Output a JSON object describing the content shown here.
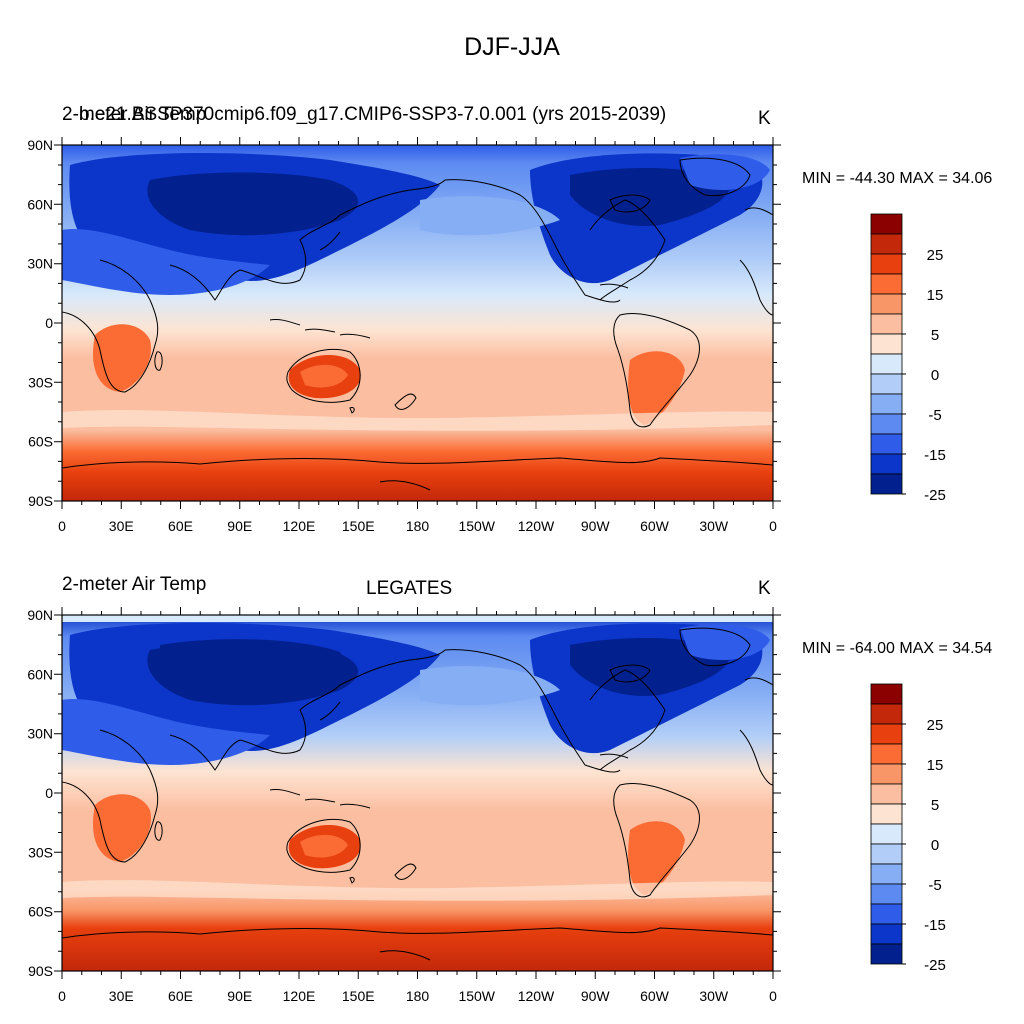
{
  "figure": {
    "title": "DJF-JJA"
  },
  "panels": [
    {
      "left_label": "2-meter Air Temp",
      "center_label": "b.e21.BSSP370cmip6.f09_g17.CMIP6-SSP3-7.0.001 (yrs 2015-2039)",
      "units": "K",
      "min_max": "MIN = -44.30 MAX =  34.06"
    },
    {
      "left_label": "2-meter Air Temp",
      "center_label": "LEGATES",
      "units": "K",
      "min_max": "MIN = -64.00 MAX =  34.54"
    }
  ],
  "map": {
    "projection": "cylindrical equidistant",
    "center_longitude": 180,
    "lat_ticks": [
      "90N",
      "60N",
      "30N",
      "0",
      "30S",
      "60S",
      "90S"
    ],
    "lon_ticks": [
      "0",
      "30E",
      "60E",
      "90E",
      "120E",
      "150E",
      "180",
      "150W",
      "120W",
      "90W",
      "60W",
      "30W",
      "0"
    ]
  },
  "colorbar": {
    "labels": [
      "25",
      "15",
      "5",
      "0",
      "-5",
      "-15",
      "-25"
    ],
    "colors": [
      "#8b0000",
      "#c3280a",
      "#e8400e",
      "#fb6c35",
      "#f99668",
      "#fbbea1",
      "#fde4d2",
      "#d7e9fb",
      "#b2cef8",
      "#86aef4",
      "#5c8af1",
      "#2f5ce9",
      "#0c35c9",
      "#03208f"
    ]
  }
}
